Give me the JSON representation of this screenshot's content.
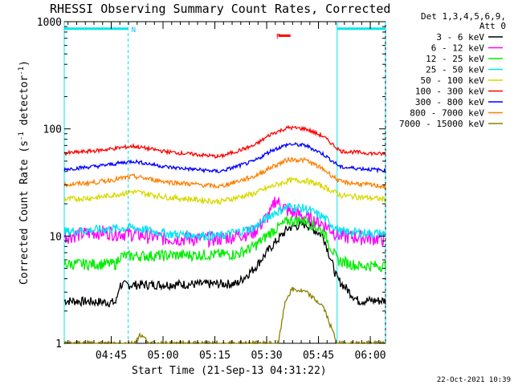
{
  "chart_data": {
    "type": "line",
    "title": "RHESSI Observing Summary Count Rates, Corrected",
    "xlabel": "Start Time (21-Sep-13 04:31:22)",
    "ylabel": "Corrected Count Rate (s",
    "ylabel_unit": "-1",
    "ylabel_tail": " detector",
    "ylabel_unit2": "-1",
    "ylabel_close": ")",
    "yscale": "log",
    "ylim": [
      1,
      1000
    ],
    "y_ticks": [
      {
        "v": 1,
        "label": "1"
      },
      {
        "v": 10,
        "label": "10"
      },
      {
        "v": 100,
        "label": "100"
      },
      {
        "v": 1000,
        "label": "1000"
      }
    ],
    "xlim": [
      0,
      93
    ],
    "x_ticks": [
      {
        "v": 13.6,
        "label": "04:45"
      },
      {
        "v": 28.6,
        "label": "05:00"
      },
      {
        "v": 43.6,
        "label": "05:15"
      },
      {
        "v": 58.6,
        "label": "05:30"
      },
      {
        "v": 73.6,
        "label": "05:45"
      },
      {
        "v": 88.6,
        "label": "06:00"
      }
    ],
    "legend_header": [
      "Det 1,3,4,5,6,9,",
      "Att 0"
    ],
    "legend_placement": "top-right, outside plot",
    "series": [
      {
        "name": "3 - 6 keV",
        "color": "#000000",
        "values": [
          [
            0,
            2.5
          ],
          [
            15,
            2.4
          ],
          [
            16,
            3.5
          ],
          [
            50,
            3.6
          ],
          [
            55,
            5
          ],
          [
            60,
            8
          ],
          [
            65,
            12
          ],
          [
            70,
            13
          ],
          [
            75,
            10
          ],
          [
            79,
            4
          ],
          [
            85,
            2.5
          ],
          [
            93,
            2.5
          ]
        ]
      },
      {
        "name": "6 - 12 keV",
        "color": "#ff00ff",
        "values": [
          [
            0,
            10
          ],
          [
            10,
            11
          ],
          [
            20,
            10.5
          ],
          [
            30,
            9.5
          ],
          [
            45,
            9.5
          ],
          [
            55,
            11
          ],
          [
            60,
            17
          ],
          [
            61,
            22
          ],
          [
            65,
            17
          ],
          [
            70,
            15
          ],
          [
            75,
            13
          ],
          [
            80,
            10
          ],
          [
            93,
            9.5
          ]
        ]
      },
      {
        "name": "12 - 25 keV",
        "color": "#00ee00",
        "values": [
          [
            0,
            5.5
          ],
          [
            15,
            5.5
          ],
          [
            16,
            6.5
          ],
          [
            50,
            6.8
          ],
          [
            55,
            8
          ],
          [
            60,
            11
          ],
          [
            65,
            14
          ],
          [
            70,
            14
          ],
          [
            75,
            11
          ],
          [
            79,
            6
          ],
          [
            85,
            5.3
          ],
          [
            93,
            5.3
          ]
        ]
      },
      {
        "name": "25 - 50 keV",
        "color": "#00e5ee",
        "values": [
          [
            0,
            11
          ],
          [
            10,
            11.5
          ],
          [
            20,
            12
          ],
          [
            30,
            10.5
          ],
          [
            45,
            10
          ],
          [
            55,
            12
          ],
          [
            60,
            16
          ],
          [
            65,
            19
          ],
          [
            70,
            18
          ],
          [
            75,
            15
          ],
          [
            80,
            11
          ],
          [
            93,
            10.5
          ]
        ]
      },
      {
        "name": "50 - 100 keV",
        "color": "#d8d800",
        "values": [
          [
            0,
            22
          ],
          [
            10,
            23
          ],
          [
            20,
            26
          ],
          [
            30,
            23
          ],
          [
            45,
            21
          ],
          [
            55,
            25
          ],
          [
            60,
            29
          ],
          [
            65,
            33
          ],
          [
            70,
            33
          ],
          [
            75,
            29
          ],
          [
            80,
            24
          ],
          [
            93,
            22
          ]
        ]
      },
      {
        "name": "100 - 300 keV",
        "color": "#ff0000",
        "values": [
          [
            0,
            59
          ],
          [
            10,
            63
          ],
          [
            20,
            69
          ],
          [
            30,
            61
          ],
          [
            45,
            55
          ],
          [
            55,
            70
          ],
          [
            60,
            90
          ],
          [
            65,
            103
          ],
          [
            70,
            100
          ],
          [
            75,
            85
          ],
          [
            80,
            62
          ],
          [
            93,
            58
          ]
        ]
      },
      {
        "name": "300 - 800 keV",
        "color": "#0000ff",
        "values": [
          [
            0,
            42
          ],
          [
            10,
            45
          ],
          [
            20,
            50
          ],
          [
            30,
            44
          ],
          [
            45,
            40
          ],
          [
            55,
            50
          ],
          [
            60,
            63
          ],
          [
            65,
            72
          ],
          [
            70,
            70
          ],
          [
            75,
            58
          ],
          [
            80,
            44
          ],
          [
            93,
            41
          ]
        ]
      },
      {
        "name": "800 - 7000 keV",
        "color": "#ff8000",
        "values": [
          [
            0,
            30
          ],
          [
            10,
            32
          ],
          [
            20,
            36
          ],
          [
            30,
            32
          ],
          [
            45,
            29
          ],
          [
            55,
            36
          ],
          [
            60,
            44
          ],
          [
            65,
            52
          ],
          [
            70,
            51
          ],
          [
            75,
            42
          ],
          [
            80,
            32
          ],
          [
            93,
            29
          ]
        ]
      },
      {
        "name": "7000 - 15000 keV",
        "color": "#8b8000",
        "values": [
          [
            0,
            1
          ],
          [
            20,
            1
          ],
          [
            22,
            1.2
          ],
          [
            25,
            1
          ],
          [
            62,
            1
          ],
          [
            64,
            2.5
          ],
          [
            66,
            3.2
          ],
          [
            70,
            3.0
          ],
          [
            75,
            2.2
          ],
          [
            79,
            1
          ],
          [
            93,
            1
          ]
        ]
      }
    ],
    "flag_bars": [
      {
        "label": "N",
        "label_color": "#00bfff",
        "color": "#00e5ee",
        "x0": 0,
        "x1": 18.5,
        "y": 860
      },
      {
        "label": "",
        "label_color": "#00e5ee",
        "color": "#00e5ee",
        "x0": 79,
        "x1": 93,
        "y": 860
      },
      {
        "label": "F",
        "label_color": "#ff0000",
        "color": "#ff0000",
        "x0": 62,
        "x1": 65.5,
        "y": 740
      }
    ],
    "vlines": [
      {
        "x": 0,
        "style": "solid",
        "color": "#00e5ee"
      },
      {
        "x": 18.5,
        "style": "dashed",
        "color": "#00e5ee"
      },
      {
        "x": 79,
        "style": "solid",
        "color": "#00e5ee"
      },
      {
        "x": 93,
        "style": "dashed",
        "color": "#00e5ee"
      }
    ],
    "footer_stamp": "22-Oct-2021 10:39"
  }
}
